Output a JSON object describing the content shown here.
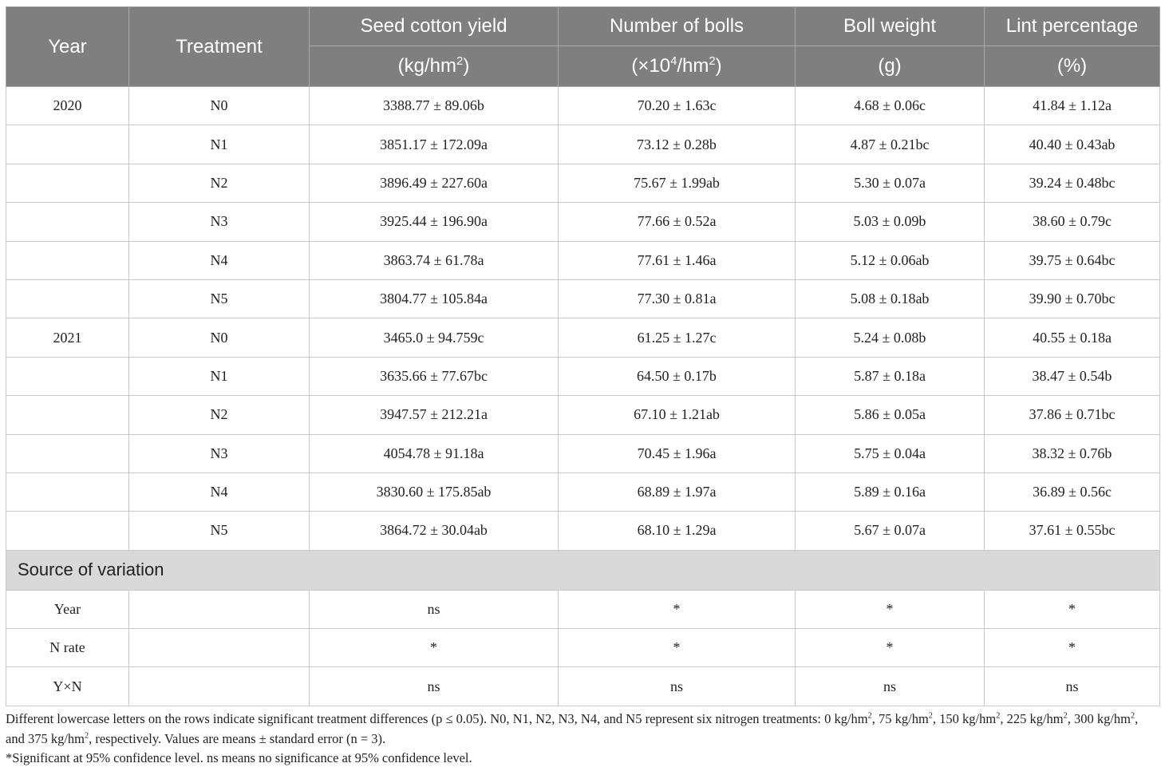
{
  "header": {
    "year": "Year",
    "treatment": "Treatment",
    "columns": [
      {
        "title": "Seed cotton yield",
        "unit_prefix": "(kg/hm",
        "unit_sup": "2",
        "unit_suffix": ")"
      },
      {
        "title": "Number of bolls",
        "unit_prefix": "(×10",
        "unit_sup": "4",
        "unit_mid": "/hm",
        "unit_sup2": "2",
        "unit_suffix": ")"
      },
      {
        "title": "Boll weight",
        "unit": "(g)"
      },
      {
        "title": "Lint percentage",
        "unit": "(%)"
      }
    ]
  },
  "rows": [
    {
      "year": "2020",
      "treatment": "N0",
      "yield": "3388.77 ± 89.06b",
      "bolls": "70.20 ± 1.63c",
      "boll_weight": "4.68 ± 0.06c",
      "lint": "41.84 ± 1.12a"
    },
    {
      "year": "",
      "treatment": "N1",
      "yield": "3851.17 ± 172.09a",
      "bolls": "73.12 ± 0.28b",
      "boll_weight": "4.87 ± 0.21bc",
      "lint": "40.40 ± 0.43ab"
    },
    {
      "year": "",
      "treatment": "N2",
      "yield": "3896.49 ± 227.60a",
      "bolls": "75.67 ± 1.99ab",
      "boll_weight": "5.30 ± 0.07a",
      "lint": "39.24 ± 0.48bc"
    },
    {
      "year": "",
      "treatment": "N3",
      "yield": "3925.44 ± 196.90a",
      "bolls": "77.66 ± 0.52a",
      "boll_weight": "5.03 ± 0.09b",
      "lint": "38.60 ± 0.79c"
    },
    {
      "year": "",
      "treatment": "N4",
      "yield": "3863.74 ± 61.78a",
      "bolls": "77.61 ± 1.46a",
      "boll_weight": "5.12 ± 0.06ab",
      "lint": "39.75 ± 0.64bc"
    },
    {
      "year": "",
      "treatment": "N5",
      "yield": "3804.77 ± 105.84a",
      "bolls": "77.30 ± 0.81a",
      "boll_weight": "5.08 ± 0.18ab",
      "lint": "39.90 ± 0.70bc"
    },
    {
      "year": "2021",
      "treatment": "N0",
      "yield": "3465.0 ± 94.759c",
      "bolls": "61.25 ± 1.27c",
      "boll_weight": "5.24 ± 0.08b",
      "lint": "40.55 ± 0.18a"
    },
    {
      "year": "",
      "treatment": "N1",
      "yield": "3635.66 ± 77.67bc",
      "bolls": "64.50 ± 0.17b",
      "boll_weight": "5.87 ± 0.18a",
      "lint": "38.47 ± 0.54b"
    },
    {
      "year": "",
      "treatment": "N2",
      "yield": "3947.57 ± 212.21a",
      "bolls": "67.10 ± 1.21ab",
      "boll_weight": "5.86 ± 0.05a",
      "lint": "37.86 ± 0.71bc"
    },
    {
      "year": "",
      "treatment": "N3",
      "yield": "4054.78 ± 91.18a",
      "bolls": "70.45 ± 1.96a",
      "boll_weight": "5.75 ± 0.04a",
      "lint": "38.32 ± 0.76b"
    },
    {
      "year": "",
      "treatment": "N4",
      "yield": "3830.60 ± 175.85ab",
      "bolls": "68.89 ± 1.97a",
      "boll_weight": "5.89 ± 0.16a",
      "lint": "36.89 ± 0.56c"
    },
    {
      "year": "",
      "treatment": "N5",
      "yield": "3864.72 ± 30.04ab",
      "bolls": "68.10 ± 1.29a",
      "boll_weight": "5.67 ± 0.07a",
      "lint": "37.61 ± 0.55bc"
    }
  ],
  "source_of_variation": {
    "label": "Source of variation",
    "rows": [
      {
        "source": "Year",
        "treatment": "",
        "yield": "ns",
        "bolls": "*",
        "boll_weight": "*",
        "lint": "*"
      },
      {
        "source": "N rate",
        "treatment": "",
        "yield": "*",
        "bolls": "*",
        "boll_weight": "*",
        "lint": "*"
      },
      {
        "source": "Y×N",
        "treatment": "",
        "yield": "ns",
        "bolls": "ns",
        "boll_weight": "ns",
        "lint": "ns"
      }
    ]
  },
  "notes": {
    "line1_a": "Different lowercase letters on the rows indicate significant treatment differences (p ≤ 0.05). N0, N1, N2, N3, N4, and N5 represent six nitrogen treatments: 0 kg/hm",
    "sup": "2",
    "line1_b": ", 75 kg/hm",
    "line1_c": ", 150 kg/hm",
    "line1_d": ", 225 kg/hm",
    "line1_e": ", 300 kg/hm",
    "line1_f": ", and 375 kg/hm",
    "line1_g": ", respectively. Values are means ± standard error (n = 3).",
    "line2": "*Significant at 95% confidence level. ns means no significance at 95% confidence level."
  }
}
